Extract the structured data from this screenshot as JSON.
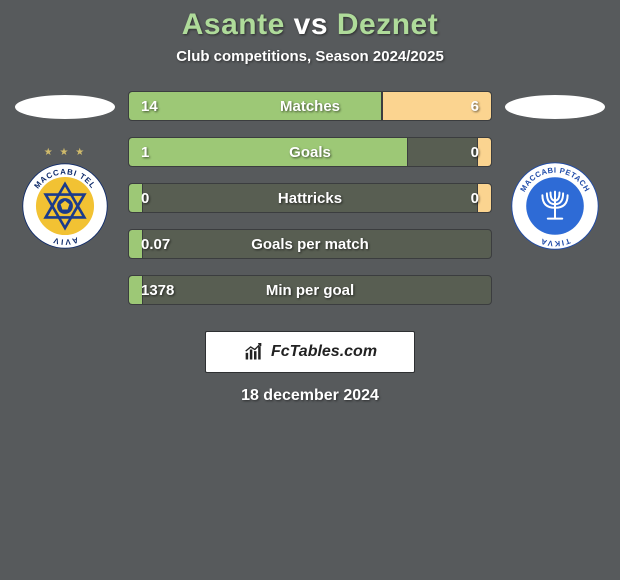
{
  "header": {
    "player1": "Asante",
    "vs": "vs",
    "player2": "Deznet",
    "subtitle": "Club competitions, Season 2024/2025"
  },
  "crests": {
    "left": {
      "type": "club-badge",
      "outer_ring_bg": "#ffffff",
      "inner_bg": "#f2c233",
      "ring_text_color": "#0e2a6a",
      "ring_text_top": "MACCABI TEL",
      "ring_text_bottom": "AVIV",
      "center_icon": "star-ball",
      "center_icon_color": "#1b3b8b",
      "stars_above": "★ ★ ★",
      "stars_color": "#d0bb6b"
    },
    "right": {
      "type": "club-badge",
      "outer_ring_bg": "#ffffff",
      "inner_bg": "#2e6bd6",
      "ring_text_color": "#1e4aa8",
      "ring_text_top": "MACCABI PETACH",
      "ring_text_bottom": "TIKVA",
      "center_icon": "menorah",
      "center_icon_color": "#ffffff"
    }
  },
  "bars": [
    {
      "label": "Matches",
      "left": "14",
      "right": "6",
      "left_pct": 70,
      "right_pct": 30
    },
    {
      "label": "Goals",
      "left": "1",
      "right": "0",
      "left_pct": 77,
      "right_pct": 4
    },
    {
      "label": "Hattricks",
      "left": "0",
      "right": "0",
      "left_pct": 4,
      "right_pct": 4
    },
    {
      "label": "Goals per match",
      "left": "0.07",
      "right": "",
      "left_pct": 4,
      "right_pct": 0
    },
    {
      "label": "Min per goal",
      "left": "1378",
      "right": "",
      "left_pct": 4,
      "right_pct": 0
    }
  ],
  "footer": {
    "brand": "FcTables.com",
    "date": "18 december 2024"
  },
  "colors": {
    "page_bg": "#575a5c",
    "title_green": "#afdb9a",
    "bar_track": "#585e52",
    "bar_left_fill": "#9dc876",
    "bar_right_fill": "#fbd490",
    "bar_border": "#3b3d3f",
    "footer_box_bg": "#ffffff",
    "text_shadow": "rgba(0,0,0,0.5)"
  }
}
